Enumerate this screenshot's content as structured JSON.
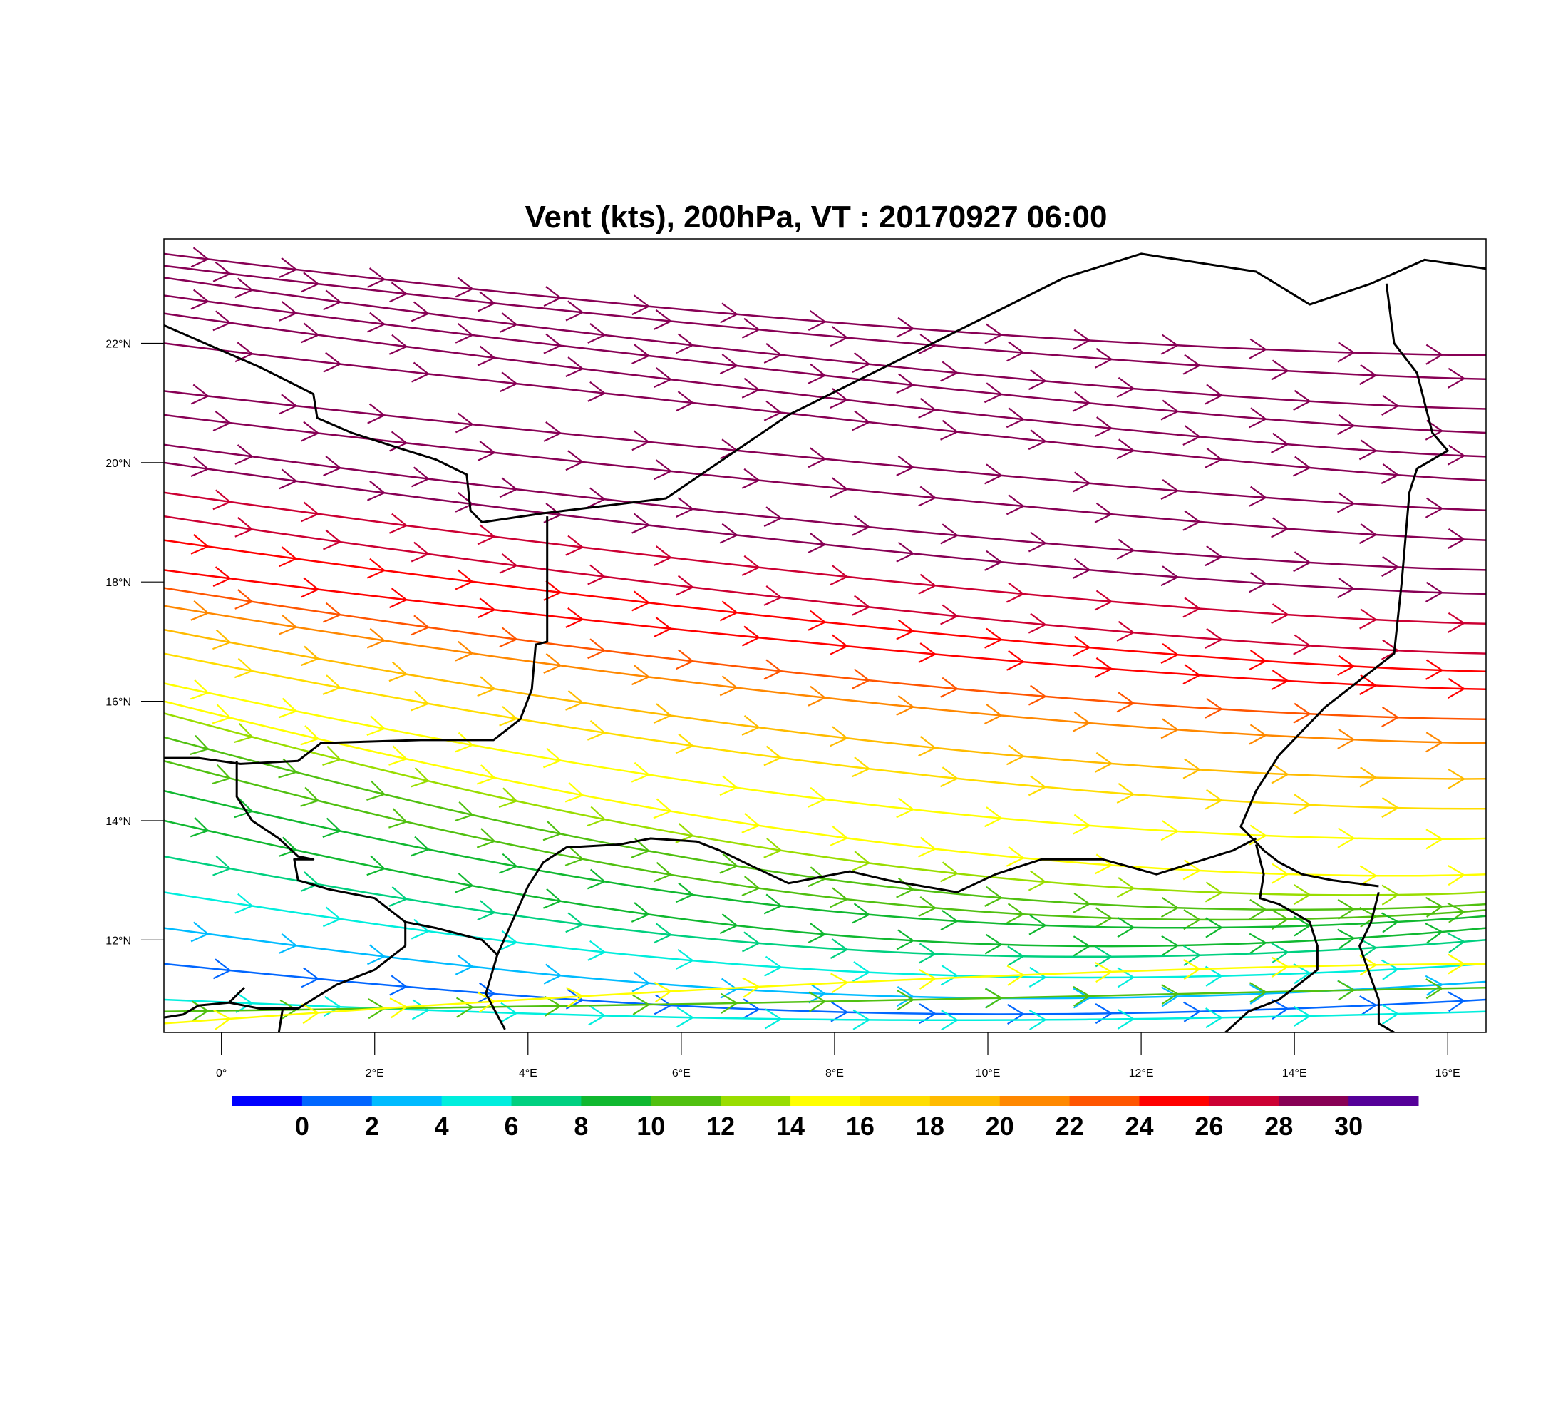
{
  "title": "Vent (kts), 200hPa, VT : 20170927  06:00",
  "map": {
    "lon_range": [
      -0.75,
      16.5
    ],
    "lat_range": [
      10.45,
      23.75
    ],
    "lon_ticks": [
      {
        "value": 0,
        "label": "0°"
      },
      {
        "value": 2,
        "label": "2°E"
      },
      {
        "value": 4,
        "label": "4°E"
      },
      {
        "value": 6,
        "label": "6°E"
      },
      {
        "value": 8,
        "label": "8°E"
      },
      {
        "value": 10,
        "label": "10°E"
      },
      {
        "value": 12,
        "label": "12°E"
      },
      {
        "value": 14,
        "label": "14°E"
      },
      {
        "value": 16,
        "label": "16°E"
      }
    ],
    "lat_ticks": [
      {
        "value": 12,
        "label": "12°N"
      },
      {
        "value": 14,
        "label": "14°N"
      },
      {
        "value": 16,
        "label": "16°N"
      },
      {
        "value": 18,
        "label": "18°N"
      },
      {
        "value": 20,
        "label": "20°N"
      },
      {
        "value": 22,
        "label": "22°N"
      }
    ],
    "borders": [
      [
        [
          -0.75,
          22.3
        ],
        [
          0.5,
          21.6
        ],
        [
          1.2,
          21.15
        ],
        [
          1.25,
          20.75
        ],
        [
          1.7,
          20.5
        ],
        [
          2.3,
          20.25
        ],
        [
          2.8,
          20.05
        ],
        [
          3.2,
          19.8
        ],
        [
          3.25,
          19.2
        ],
        [
          3.4,
          19.0
        ],
        [
          4.2,
          19.15
        ],
        [
          5.8,
          19.4
        ],
        [
          7.4,
          20.8
        ],
        [
          11.0,
          23.1
        ],
        [
          12.0,
          23.5
        ],
        [
          13.5,
          23.2
        ],
        [
          14.2,
          22.65
        ],
        [
          15.0,
          23.0
        ],
        [
          15.7,
          23.4
        ],
        [
          16.5,
          23.25
        ]
      ],
      [
        [
          15.2,
          23.0
        ],
        [
          15.3,
          22.0
        ],
        [
          15.6,
          21.5
        ],
        [
          15.8,
          20.5
        ],
        [
          16.0,
          20.2
        ],
        [
          15.6,
          19.9
        ],
        [
          15.5,
          19.5
        ],
        [
          15.4,
          18.0
        ],
        [
          15.3,
          16.8
        ],
        [
          14.4,
          15.9
        ],
        [
          13.8,
          15.1
        ],
        [
          13.5,
          14.5
        ],
        [
          13.3,
          13.9
        ],
        [
          13.6,
          13.5
        ],
        [
          13.8,
          13.3
        ],
        [
          14.1,
          13.1
        ],
        [
          14.5,
          13.0
        ],
        [
          14.8,
          12.95
        ],
        [
          15.1,
          12.9
        ]
      ],
      [
        [
          4.25,
          19.1
        ],
        [
          4.25,
          17.0
        ],
        [
          4.1,
          16.95
        ],
        [
          4.05,
          16.2
        ],
        [
          3.9,
          15.7
        ],
        [
          3.55,
          15.35
        ],
        [
          2.6,
          15.35
        ],
        [
          1.3,
          15.3
        ],
        [
          1.0,
          15.0
        ],
        [
          0.25,
          14.95
        ],
        [
          -0.3,
          15.05
        ],
        [
          -0.75,
          15.05
        ]
      ],
      [
        [
          0.2,
          15.0
        ],
        [
          0.2,
          14.4
        ],
        [
          0.4,
          14.0
        ],
        [
          0.75,
          13.7
        ],
        [
          1.0,
          13.4
        ],
        [
          1.2,
          13.35
        ],
        [
          0.95,
          13.35
        ],
        [
          1.0,
          13.0
        ],
        [
          1.4,
          12.85
        ],
        [
          2.0,
          12.7
        ],
        [
          2.2,
          12.5
        ],
        [
          2.4,
          12.3
        ],
        [
          2.8,
          12.2
        ],
        [
          3.4,
          12.0
        ],
        [
          3.6,
          11.75
        ]
      ],
      [
        [
          3.6,
          11.75
        ],
        [
          3.45,
          11.1
        ],
        [
          3.7,
          10.5
        ]
      ],
      [
        [
          3.6,
          11.75
        ],
        [
          4.0,
          12.9
        ],
        [
          4.2,
          13.3
        ],
        [
          4.5,
          13.55
        ],
        [
          5.2,
          13.6
        ],
        [
          5.6,
          13.7
        ],
        [
          6.2,
          13.65
        ],
        [
          6.5,
          13.5
        ],
        [
          6.9,
          13.25
        ],
        [
          7.4,
          12.95
        ],
        [
          7.8,
          13.05
        ],
        [
          8.2,
          13.15
        ],
        [
          8.7,
          13.0
        ],
        [
          9.6,
          12.8
        ],
        [
          10.1,
          13.1
        ],
        [
          10.7,
          13.35
        ],
        [
          11.5,
          13.35
        ],
        [
          12.2,
          13.1
        ],
        [
          12.7,
          13.3
        ],
        [
          13.2,
          13.5
        ],
        [
          13.5,
          13.7
        ]
      ],
      [
        [
          13.5,
          13.6
        ],
        [
          13.6,
          13.1
        ],
        [
          13.55,
          12.7
        ],
        [
          13.8,
          12.6
        ],
        [
          14.2,
          12.3
        ],
        [
          14.3,
          11.9
        ],
        [
          14.3,
          11.5
        ],
        [
          13.8,
          11.0
        ],
        [
          13.4,
          10.8
        ],
        [
          13.1,
          10.45
        ]
      ],
      [
        [
          15.1,
          12.8
        ],
        [
          15.0,
          12.3
        ],
        [
          14.85,
          11.9
        ],
        [
          15.1,
          11.0
        ],
        [
          15.1,
          10.6
        ],
        [
          15.3,
          10.45
        ]
      ],
      [
        [
          -0.75,
          10.7
        ],
        [
          -0.5,
          10.75
        ],
        [
          -0.3,
          10.9
        ],
        [
          0.1,
          10.95
        ],
        [
          0.5,
          10.85
        ],
        [
          1.0,
          10.85
        ],
        [
          1.5,
          11.25
        ],
        [
          2.0,
          11.5
        ],
        [
          2.4,
          11.9
        ]
      ],
      [
        [
          0.8,
          10.85
        ],
        [
          0.75,
          10.45
        ]
      ],
      [
        [
          2.4,
          11.9
        ],
        [
          2.4,
          12.3
        ]
      ],
      [
        [
          0.1,
          10.95
        ],
        [
          0.3,
          11.2
        ]
      ]
    ],
    "wind_speed_units": "kts"
  },
  "colorbar": {
    "colors": [
      "#0000ff",
      "#0066ff",
      "#00bbff",
      "#00eedd",
      "#00d080",
      "#10b830",
      "#50c010",
      "#99dd00",
      "#ffff00",
      "#ffdd00",
      "#ffbb00",
      "#ff8800",
      "#ff5500",
      "#ff0000",
      "#cc0033",
      "#880055",
      "#550099"
    ],
    "labels": [
      "0",
      "2",
      "4",
      "6",
      "8",
      "10",
      "12",
      "14",
      "16",
      "18",
      "20",
      "22",
      "24",
      "26",
      "28",
      "30"
    ]
  },
  "streamlines": [
    {
      "speed": 31,
      "lat0": 23.5,
      "lat1": 21.8,
      "dip": 0.0
    },
    {
      "speed": 31,
      "lat0": 23.3,
      "lat1": 21.4,
      "dip": 0.1
    },
    {
      "speed": 31,
      "lat0": 23.1,
      "lat1": 20.9,
      "dip": 0.1
    },
    {
      "speed": 31,
      "lat0": 22.8,
      "lat1": 20.5,
      "dip": 0.2
    },
    {
      "speed": 31,
      "lat0": 22.5,
      "lat1": 20.1,
      "dip": 0.2
    },
    {
      "speed": 31,
      "lat0": 22.0,
      "lat1": 19.7,
      "dip": 0.3
    },
    {
      "speed": 31,
      "lat0": 21.2,
      "lat1": 19.2,
      "dip": 0.2
    },
    {
      "speed": 31,
      "lat0": 20.8,
      "lat1": 18.7,
      "dip": 0.2
    },
    {
      "speed": 31,
      "lat0": 20.3,
      "lat1": 18.2,
      "dip": 0.1
    },
    {
      "speed": 30,
      "lat0": 20.0,
      "lat1": 17.8,
      "dip": 0.1
    },
    {
      "speed": 29,
      "lat0": 19.5,
      "lat1": 17.3,
      "dip": 0.1
    },
    {
      "speed": 28,
      "lat0": 19.1,
      "lat1": 16.8,
      "dip": 0.1
    },
    {
      "speed": 27,
      "lat0": 18.7,
      "lat1": 16.5,
      "dip": 0.1
    },
    {
      "speed": 26,
      "lat0": 18.2,
      "lat1": 16.2,
      "dip": 0.1
    },
    {
      "speed": 25,
      "lat0": 17.9,
      "lat1": 15.7,
      "dip": 0.0
    },
    {
      "speed": 23,
      "lat0": 17.6,
      "lat1": 15.3,
      "dip": 0.0
    },
    {
      "speed": 21,
      "lat0": 17.2,
      "lat1": 14.7,
      "dip": -0.1
    },
    {
      "speed": 19,
      "lat0": 16.8,
      "lat1": 14.2,
      "dip": -0.1
    },
    {
      "speed": 17,
      "lat0": 16.3,
      "lat1": 13.7,
      "dip": -0.2
    },
    {
      "speed": 16,
      "lat0": 16.0,
      "lat1": 13.1,
      "dip": -0.3
    },
    {
      "speed": 15,
      "lat0": 15.8,
      "lat1": 12.8,
      "dip": -0.4
    },
    {
      "speed": 13,
      "lat0": 15.4,
      "lat1": 12.6,
      "dip": -0.5
    },
    {
      "speed": 12,
      "lat0": 15.0,
      "lat1": 12.5,
      "dip": -0.6
    },
    {
      "speed": 11,
      "lat0": 14.5,
      "lat1": 12.4,
      "dip": -0.6
    },
    {
      "speed": 10,
      "lat0": 14.0,
      "lat1": 12.2,
      "dip": -0.7
    },
    {
      "speed": 8,
      "lat0": 13.4,
      "lat1": 12.0,
      "dip": -0.6
    },
    {
      "speed": 7,
      "lat0": 12.8,
      "lat1": 11.6,
      "dip": -0.5
    },
    {
      "speed": 5,
      "lat0": 12.2,
      "lat1": 11.3,
      "dip": -0.5
    },
    {
      "speed": 3,
      "lat0": 11.6,
      "lat1": 11.0,
      "dip": -0.4
    },
    {
      "speed": 6,
      "lat0": 11.0,
      "lat1": 10.8,
      "dip": -0.2
    },
    {
      "speed": 12,
      "lat0": 10.8,
      "lat1": 11.2,
      "dip": -0.1
    },
    {
      "speed": 16,
      "lat0": 10.6,
      "lat1": 11.6,
      "dip": 0.0
    }
  ]
}
